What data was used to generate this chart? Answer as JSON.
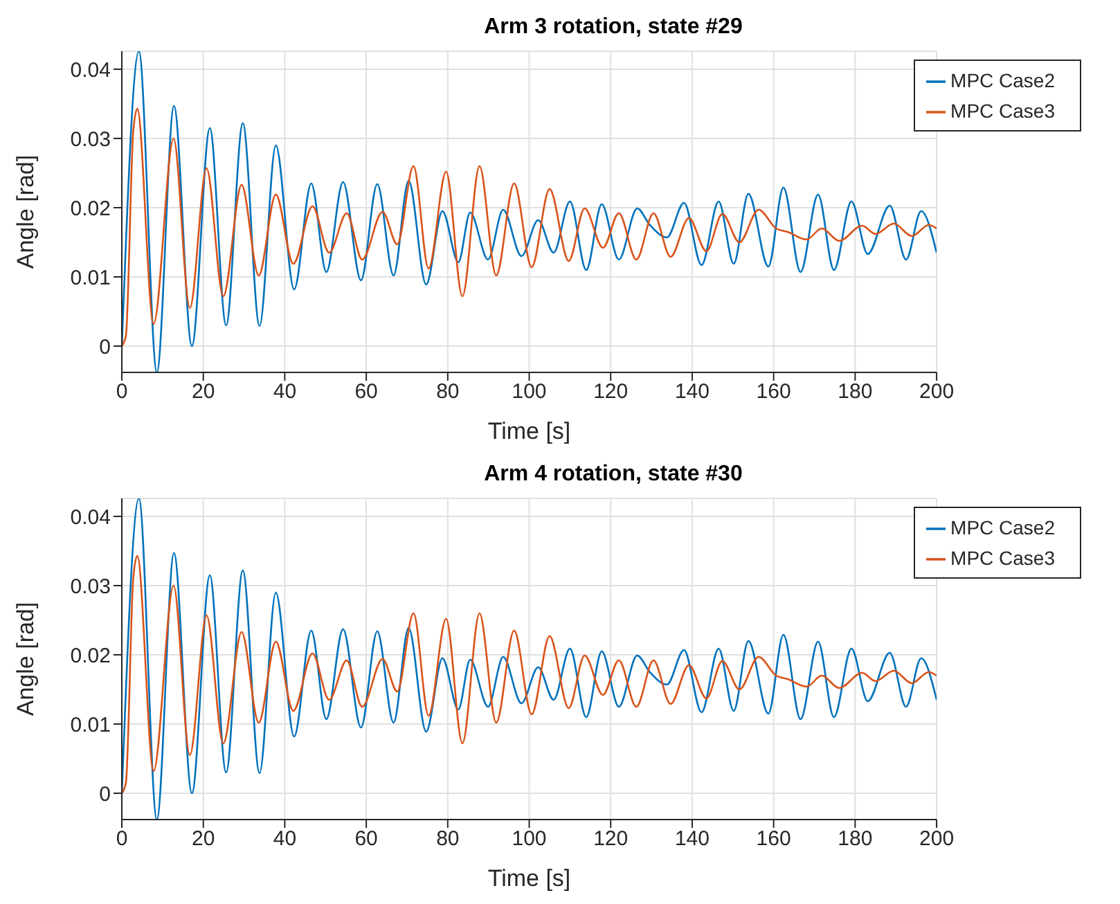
{
  "chart_data": [
    {
      "type": "line",
      "title": "Arm 3 rotation, state #29",
      "xlabel": "Time [s]",
      "ylabel": "Angle [rad]",
      "xlim": [
        0,
        200
      ],
      "xticks": [
        0,
        20,
        40,
        60,
        80,
        100,
        120,
        140,
        160,
        180,
        200
      ],
      "ylim": [
        -0.0038,
        0.0426
      ],
      "yticks": [
        0,
        0.01,
        0.02,
        0.03,
        0.04
      ],
      "grid": true,
      "legend": "top right",
      "marker": "none",
      "line_style": "solid",
      "series": [
        {
          "name": "MPC Case2",
          "color": "#0072bd",
          "x": [
            0,
            4.2,
            8.6,
            12.8,
            17.2,
            21.6,
            25.6,
            29.7,
            33.8,
            37.8,
            42.3,
            46.5,
            50.2,
            54.3,
            58.7,
            62.7,
            66.7,
            70.4,
            74.7,
            78.7,
            82.6,
            85.5,
            89.9,
            93.6,
            98.1,
            102.2,
            106,
            110,
            114,
            117.8,
            122,
            126.5,
            129.6,
            133.8,
            138,
            142.3,
            146.5,
            150.2,
            153.8,
            158.7,
            162.4,
            166.6,
            170.9,
            174.8,
            179.1,
            183.1,
            188.5,
            192.5,
            196.2,
            200
          ],
          "values": [
            0,
            0.0426,
            -0.0038,
            0.0347,
            0,
            0.0315,
            0.003,
            0.0322,
            0.0029,
            0.029,
            0.0082,
            0.0235,
            0.0107,
            0.0237,
            0.0095,
            0.0234,
            0.0102,
            0.0239,
            0.0089,
            0.0195,
            0.0121,
            0.0193,
            0.0125,
            0.0197,
            0.013,
            0.0182,
            0.0135,
            0.0209,
            0.011,
            0.0205,
            0.0125,
            0.0199,
            0.0175,
            0.0157,
            0.0207,
            0.0117,
            0.0209,
            0.0119,
            0.022,
            0.0115,
            0.0229,
            0.0107,
            0.0219,
            0.011,
            0.0209,
            0.0133,
            0.0203,
            0.0125,
            0.0195,
            0.0135
          ]
        },
        {
          "name": "MPC Case3",
          "color": "#d95319",
          "x": [
            0,
            1,
            2.8,
            3.8,
            7.8,
            12.7,
            16.7,
            20.8,
            24.9,
            29.4,
            33.6,
            37.8,
            42.1,
            46.8,
            50.9,
            55.2,
            59,
            64,
            67.6,
            71.6,
            75.3,
            79.6,
            83.6,
            87.8,
            91.9,
            96.3,
            100.6,
            105,
            109.7,
            113.6,
            118.1,
            122,
            126.3,
            130.5,
            134.7,
            139.2,
            143.5,
            147.4,
            151.6,
            156.3,
            160.6,
            163.4,
            168.1,
            171.8,
            176.1,
            181.7,
            185,
            189.5,
            193.9,
            198.1,
            200
          ],
          "values": [
            0,
            0.0015,
            0.031,
            0.0343,
            0.0032,
            0.03,
            0.0055,
            0.0257,
            0.0072,
            0.0233,
            0.0102,
            0.0219,
            0.0119,
            0.0202,
            0.0135,
            0.0192,
            0.0125,
            0.0194,
            0.0147,
            0.026,
            0.0112,
            0.0252,
            0.0072,
            0.026,
            0.0102,
            0.0235,
            0.0114,
            0.0227,
            0.0123,
            0.0199,
            0.0142,
            0.0192,
            0.0125,
            0.0192,
            0.0129,
            0.0185,
            0.0137,
            0.0191,
            0.015,
            0.0197,
            0.017,
            0.0165,
            0.0154,
            0.017,
            0.0152,
            0.0174,
            0.0162,
            0.0177,
            0.0159,
            0.0175,
            0.017
          ]
        }
      ]
    },
    {
      "type": "line",
      "title": "Arm 4 rotation, state #30",
      "xlabel": "Time [s]",
      "ylabel": "Angle [rad]",
      "xlim": [
        0,
        200
      ],
      "xticks": [
        0,
        20,
        40,
        60,
        80,
        100,
        120,
        140,
        160,
        180,
        200
      ],
      "ylim": [
        -0.0038,
        0.0426
      ],
      "yticks": [
        0,
        0.01,
        0.02,
        0.03,
        0.04
      ],
      "grid": true,
      "legend": "top right",
      "marker": "none",
      "line_style": "solid",
      "series": [
        {
          "name": "MPC Case2",
          "color": "#0072bd",
          "x": [
            0,
            4.2,
            8.6,
            12.8,
            17.2,
            21.6,
            25.6,
            29.7,
            33.8,
            37.8,
            42.3,
            46.5,
            50.2,
            54.3,
            58.7,
            62.7,
            66.7,
            70.4,
            74.7,
            78.7,
            82.6,
            85.5,
            89.9,
            93.6,
            98.1,
            102.2,
            106,
            110,
            114,
            117.8,
            122,
            126.5,
            129.6,
            133.8,
            138,
            142.3,
            146.5,
            150.2,
            153.8,
            158.7,
            162.4,
            166.6,
            170.9,
            174.8,
            179.1,
            183.1,
            188.5,
            192.5,
            196.2,
            200
          ],
          "values": [
            0,
            0.0426,
            -0.0038,
            0.0347,
            0,
            0.0315,
            0.003,
            0.0322,
            0.0029,
            0.029,
            0.0082,
            0.0235,
            0.0107,
            0.0237,
            0.0095,
            0.0234,
            0.0102,
            0.0239,
            0.0089,
            0.0195,
            0.0121,
            0.0193,
            0.0125,
            0.0197,
            0.013,
            0.0182,
            0.0135,
            0.0209,
            0.011,
            0.0205,
            0.0125,
            0.0199,
            0.0175,
            0.0157,
            0.0207,
            0.0117,
            0.0209,
            0.0119,
            0.022,
            0.0115,
            0.0229,
            0.0107,
            0.0219,
            0.011,
            0.0209,
            0.0133,
            0.0203,
            0.0125,
            0.0195,
            0.0135
          ]
        },
        {
          "name": "MPC Case3",
          "color": "#d95319",
          "x": [
            0,
            1,
            2.8,
            3.8,
            7.8,
            12.7,
            16.7,
            20.8,
            24.9,
            29.4,
            33.6,
            37.8,
            42.1,
            46.8,
            50.9,
            55.2,
            59,
            64,
            67.6,
            71.6,
            75.3,
            79.6,
            83.6,
            87.8,
            91.9,
            96.3,
            100.6,
            105,
            109.7,
            113.6,
            118.1,
            122,
            126.3,
            130.5,
            134.7,
            139.2,
            143.5,
            147.4,
            151.6,
            156.3,
            160.6,
            163.4,
            168.1,
            171.8,
            176.1,
            181.7,
            185,
            189.5,
            193.9,
            198.1,
            200
          ],
          "values": [
            0,
            0.0015,
            0.031,
            0.0343,
            0.0032,
            0.03,
            0.0055,
            0.0257,
            0.0072,
            0.0233,
            0.0102,
            0.0219,
            0.0119,
            0.0202,
            0.0135,
            0.0192,
            0.0125,
            0.0194,
            0.0147,
            0.026,
            0.0112,
            0.0252,
            0.0072,
            0.026,
            0.0102,
            0.0235,
            0.0114,
            0.0227,
            0.0123,
            0.0199,
            0.0142,
            0.0192,
            0.0125,
            0.0192,
            0.0129,
            0.0185,
            0.0137,
            0.0191,
            0.015,
            0.0197,
            0.017,
            0.0165,
            0.0154,
            0.017,
            0.0152,
            0.0174,
            0.0162,
            0.0177,
            0.0159,
            0.0175,
            0.017
          ]
        }
      ]
    }
  ]
}
